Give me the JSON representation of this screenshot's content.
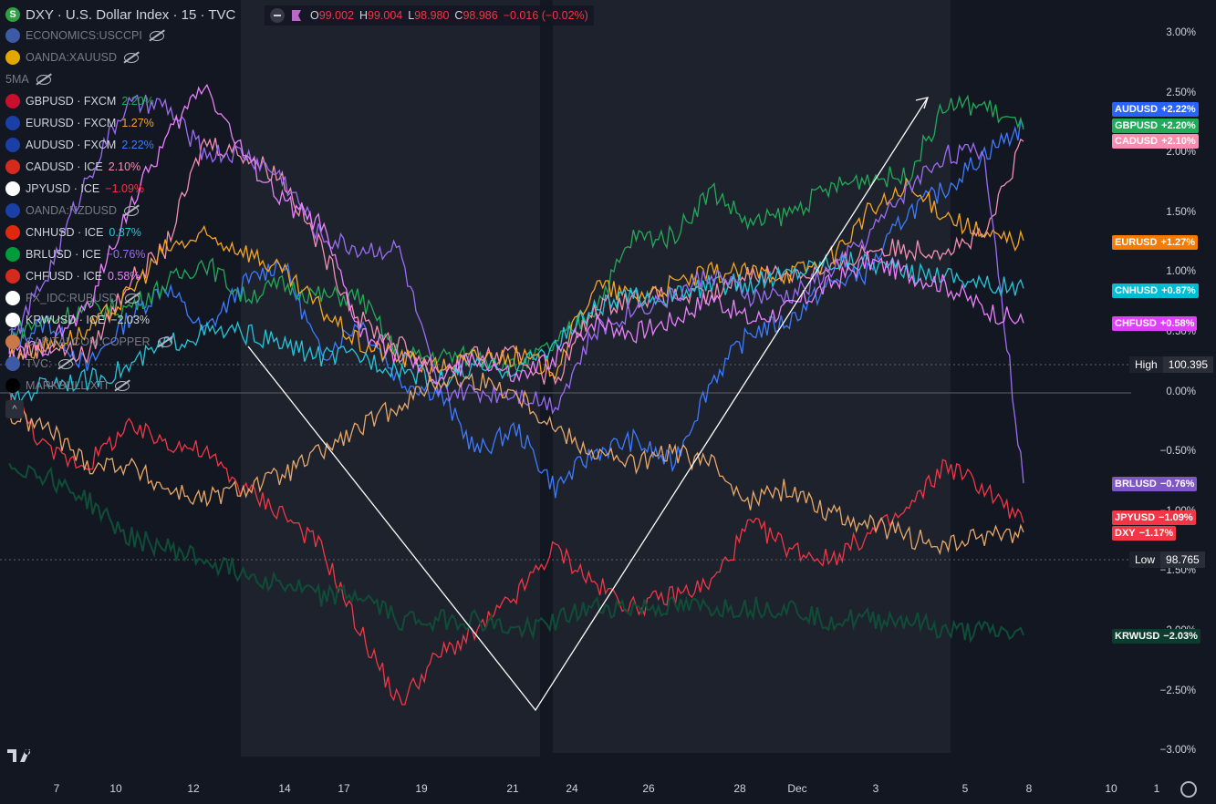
{
  "header": {
    "title": "DXY · U.S. Dollar Index · 15 · TVC",
    "symbol_icon": "S",
    "brand_color": "#2ea043"
  },
  "ohlc": {
    "o_label": "O",
    "o": "99.002",
    "h_label": "H",
    "h": "99.004",
    "l_label": "L",
    "l": "98.980",
    "c_label": "C",
    "c": "98.986",
    "chg": "−0.016 (−0.02%)"
  },
  "legend": [
    {
      "name": "ECONOMICS:USCCPI",
      "chg": "",
      "color": "#787b86",
      "hidden": true,
      "flag": "#3c5aa6"
    },
    {
      "name": "OANDA:XAUUSD",
      "chg": "",
      "color": "#787b86",
      "hidden": true,
      "flag": "#e0a800"
    },
    {
      "name": "5MA",
      "chg": "",
      "color": "#787b86",
      "hidden": true,
      "flag": ""
    },
    {
      "name": "GBPUSD · FXCM",
      "chg": "2.20%",
      "color": "#22ab57",
      "hidden": false,
      "flag": "#c8102e"
    },
    {
      "name": "EURUSD · FXCM",
      "chg": "1.27%",
      "color": "#f5a623",
      "hidden": false,
      "flag": "#1a3fa6"
    },
    {
      "name": "AUDUSD · FXCM",
      "chg": "2.22%",
      "color": "#3d7bff",
      "hidden": false,
      "flag": "#1a3fa6"
    },
    {
      "name": "CADUSD · ICE",
      "chg": "2.10%",
      "color": "#f48fb1",
      "hidden": false,
      "flag": "#d52b1e"
    },
    {
      "name": "JPYUSD · ICE",
      "chg": "−1.09%",
      "color": "#f23645",
      "hidden": false,
      "flag": "#ffffff"
    },
    {
      "name": "OANDA:NZDUSD",
      "chg": "",
      "color": "#787b86",
      "hidden": true,
      "flag": "#1a3fa6"
    },
    {
      "name": "CNHUSD · ICE",
      "chg": "0.87%",
      "color": "#26c6da",
      "hidden": false,
      "flag": "#de2910"
    },
    {
      "name": "BRLUSD · ICE",
      "chg": "−0.76%",
      "color": "#9c6cf5",
      "hidden": false,
      "flag": "#009b3a"
    },
    {
      "name": "CHFUSD · ICE",
      "chg": "0.58%",
      "color": "#ea80fc",
      "hidden": false,
      "flag": "#d52b1e"
    },
    {
      "name": "FX_IDC:RUBUSD",
      "chg": "",
      "color": "#787b86",
      "hidden": true,
      "flag": "#ffffff"
    },
    {
      "name": "KRWUSD · ICE",
      "chg": "−2.03%",
      "color": "#d1d4dc",
      "hidden": false,
      "flag": "#ffffff"
    },
    {
      "name": "CAPITALCOM:COPPER",
      "chg": "",
      "color": "#787b86",
      "hidden": true,
      "flag": "#c9784a"
    },
    {
      "name": "TVC:",
      "chg": "",
      "color": "#787b86",
      "hidden": true,
      "flag": "#3c5aa6"
    },
    {
      "name": "MARKBULL:XTI",
      "chg": "",
      "color": "#787b86",
      "hidden": true,
      "flag": "#000000"
    }
  ],
  "yaxis": {
    "ticks": [
      "3.00%",
      "2.50%",
      "2.00%",
      "1.50%",
      "1.00%",
      "0.50%",
      "0.00%",
      "−0.50%",
      "−1.00%",
      "−1.50%",
      "−2.00%",
      "−2.50%",
      "−3.00%"
    ]
  },
  "xaxis": {
    "ticks": [
      "7",
      "10",
      "12",
      "14",
      "17",
      "19",
      "21",
      "24",
      "26",
      "28",
      "Dec",
      "3",
      "5",
      "8",
      "10",
      "1"
    ]
  },
  "badges": [
    {
      "label": "AUDUSD",
      "value": "+2.22%",
      "color": "#2962ff"
    },
    {
      "label": "GBPUSD",
      "value": "+2.20%",
      "color": "#22ab57"
    },
    {
      "label": "CADUSD",
      "value": "+2.10%",
      "color": "#f48fb1"
    },
    {
      "label": "EURUSD",
      "value": "+1.27%",
      "color": "#f57c00"
    },
    {
      "label": "CNHUSD",
      "value": "+0.87%",
      "color": "#00bcd4"
    },
    {
      "label": "CHFUSD",
      "value": "+0.58%",
      "color": "#e040fb"
    },
    {
      "label": "BRLUSD",
      "value": "−0.76%",
      "color": "#7e57c2"
    },
    {
      "label": "JPYUSD",
      "value": "−1.09%",
      "color": "#f23645"
    },
    {
      "label": "DXY",
      "value": "−1.17%",
      "color": "#f23645"
    },
    {
      "label": "KRWUSD",
      "value": "−2.03%",
      "color": "#0b3d2e"
    }
  ],
  "high": {
    "label": "High",
    "value": "100.395"
  },
  "low": {
    "label": "Low",
    "value": "98.765"
  },
  "chart_data": {
    "type": "line",
    "ylim": [
      -3.0,
      3.0
    ],
    "ylabel": "",
    "xlabel": "",
    "grid": false,
    "series": [
      {
        "name": "AUDUSD",
        "color": "#3d7bff",
        "y": [
          0.4,
          0.6,
          0.2,
          0.6,
          0.9,
          0.5,
          0.9,
          1.1,
          0.3,
          0.6,
          0.1,
          0.0,
          -0.5,
          -0.3,
          -0.8,
          -0.5,
          -0.4,
          -0.6,
          0.1,
          0.5,
          0.6,
          0.9,
          1.0,
          1.5,
          1.7,
          2.0,
          2.22
        ]
      },
      {
        "name": "GBPUSD",
        "color": "#22ab57",
        "y": [
          0.5,
          0.6,
          0.7,
          0.7,
          0.9,
          1.1,
          0.8,
          0.9,
          0.8,
          0.8,
          0.3,
          0.3,
          0.3,
          0.2,
          0.4,
          0.7,
          1.3,
          1.3,
          1.7,
          1.4,
          1.5,
          1.7,
          1.8,
          1.8,
          2.4,
          2.4,
          2.2
        ]
      },
      {
        "name": "CADUSD",
        "color": "#f48fb1",
        "y": [
          0.3,
          0.4,
          0.3,
          0.9,
          1.2,
          2.1,
          2.0,
          1.8,
          1.2,
          0.6,
          0.4,
          0.2,
          0.3,
          0.3,
          0.1,
          0.7,
          0.8,
          0.8,
          0.8,
          1.0,
          1.0,
          1.0,
          1.2,
          1.2,
          1.2,
          1.3,
          2.1
        ]
      },
      {
        "name": "EURUSD",
        "color": "#f5a623",
        "y": [
          0.3,
          0.4,
          0.5,
          0.8,
          1.2,
          1.3,
          1.2,
          1.0,
          0.7,
          0.4,
          0.3,
          0.2,
          0.3,
          0.3,
          0.2,
          0.9,
          0.8,
          0.9,
          1.0,
          1.0,
          1.0,
          1.1,
          1.5,
          1.7,
          1.5,
          1.3,
          1.27
        ]
      },
      {
        "name": "CNHUSD",
        "color": "#26c6da",
        "y": [
          -0.1,
          0.1,
          0.1,
          0.2,
          0.4,
          0.5,
          0.5,
          0.4,
          0.3,
          0.3,
          0.2,
          0.1,
          0.2,
          0.2,
          0.4,
          0.7,
          0.8,
          0.8,
          0.9,
          0.9,
          1.0,
          1.1,
          1.1,
          1.0,
          1.0,
          0.9,
          0.87
        ]
      },
      {
        "name": "BRLUSD",
        "color": "#9c6cf5",
        "y": [
          0.4,
          1.0,
          1.8,
          2.4,
          2.4,
          2.0,
          2.0,
          1.8,
          1.3,
          1.2,
          1.2,
          0.0,
          0.0,
          0.0,
          -0.1,
          0.5,
          0.7,
          0.8,
          1.0,
          0.8,
          0.8,
          1.0,
          1.3,
          1.7,
          2.0,
          2.0,
          -0.76
        ]
      },
      {
        "name": "CHFUSD",
        "color": "#ea80fc",
        "y": [
          0.3,
          0.4,
          0.7,
          1.5,
          2.1,
          2.6,
          2.0,
          1.6,
          1.4,
          0.5,
          0.3,
          0.1,
          0.3,
          0.1,
          0.3,
          0.6,
          0.5,
          0.6,
          0.8,
          0.6,
          0.7,
          0.9,
          1.1,
          1.0,
          0.9,
          0.7,
          0.58
        ]
      },
      {
        "name": "JPYUSD",
        "color": "#f23645",
        "y": [
          0.0,
          -0.5,
          -0.6,
          -0.3,
          -0.4,
          -0.5,
          -0.8,
          -1.0,
          -1.3,
          -2.0,
          -2.6,
          -2.2,
          -2.0,
          -1.7,
          -1.3,
          -1.6,
          -1.8,
          -1.7,
          -1.6,
          -1.1,
          -1.3,
          -1.4,
          -1.2,
          -1.0,
          -0.6,
          -0.8,
          -1.09
        ]
      },
      {
        "name": "DXY",
        "color": "#e8a86a",
        "y": [
          -0.2,
          -0.3,
          -0.6,
          -0.6,
          -0.8,
          -0.9,
          -0.8,
          -0.7,
          -0.5,
          -0.3,
          -0.1,
          0.1,
          0.1,
          0.0,
          -0.3,
          -0.5,
          -0.6,
          -0.5,
          -0.6,
          -0.9,
          -0.8,
          -1.0,
          -1.1,
          -1.2,
          -1.3,
          -1.2,
          -1.17
        ]
      },
      {
        "name": "KRWUSD",
        "color": "#0f4d37",
        "y": [
          -0.6,
          -0.7,
          -0.9,
          -1.2,
          -1.3,
          -1.4,
          -1.5,
          -1.6,
          -1.7,
          -1.7,
          -1.9,
          -1.9,
          -1.9,
          -2.0,
          -1.9,
          -1.8,
          -1.8,
          -1.8,
          -1.8,
          -1.8,
          -1.8,
          -1.9,
          -1.9,
          -1.9,
          -2.0,
          -2.0,
          -2.03
        ]
      }
    ]
  }
}
